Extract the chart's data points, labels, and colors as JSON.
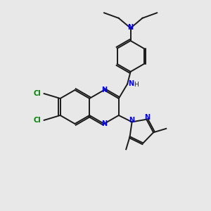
{
  "bg_color": "#e8e8e8",
  "bond_color": "#1a1a1a",
  "N_color": "#0000ff",
  "Cl_color": "#008000",
  "H_color": "#008080",
  "figsize": [
    3.0,
    3.0
  ],
  "dpi": 100,
  "xlim": [
    0,
    300
  ],
  "ylim": [
    0,
    300
  ]
}
